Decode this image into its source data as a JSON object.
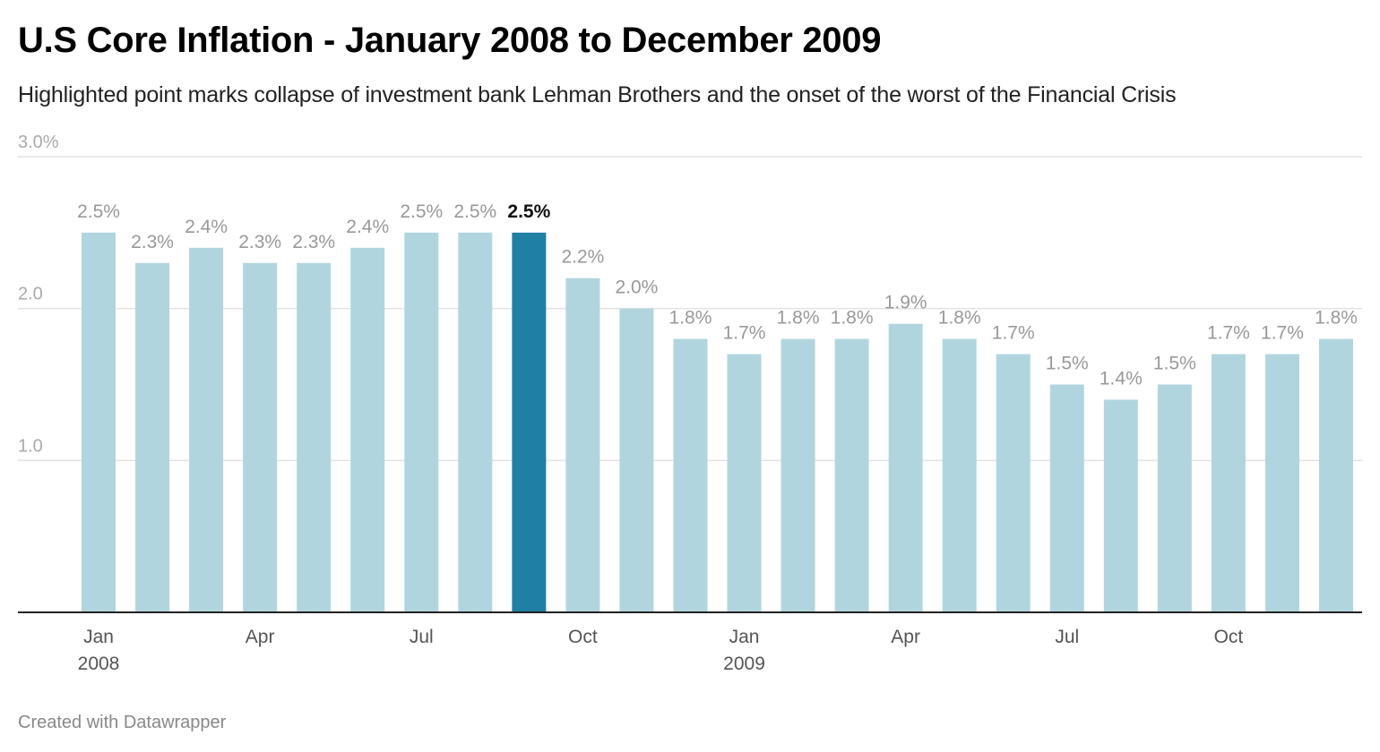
{
  "title": "U.S Core Inflation - January 2008 to December 2009",
  "subtitle": "Highlighted point marks collapse of investment bank Lehman Brothers and the onset of the worst of the Financial Crisis",
  "footer": "Created with Datawrapper",
  "colors": {
    "bar": "#b1d5de",
    "highlight": "#1f80a3",
    "grid": "#e2e2e2",
    "axis": "#222222",
    "label": "#999999",
    "highlight_label": "#111111",
    "tick": "#555555"
  },
  "chart_data": {
    "type": "bar",
    "title": "U.S Core Inflation - January 2008 to December 2009",
    "subtitle": "Highlighted point marks collapse of investment bank Lehman Brothers and the onset of the worst of the Financial Crisis",
    "xlabel": "",
    "ylabel": "",
    "ylim": [
      0,
      3.0
    ],
    "grid": true,
    "y_ticks": [
      {
        "value": 1.0,
        "label": "1.0"
      },
      {
        "value": 2.0,
        "label": "2.0"
      },
      {
        "value": 3.0,
        "label": "3.0%"
      }
    ],
    "categories": [
      "Jan 2008",
      "Feb 2008",
      "Mar 2008",
      "Apr 2008",
      "May 2008",
      "Jun 2008",
      "Jul 2008",
      "Aug 2008",
      "Sep 2008",
      "Oct 2008",
      "Nov 2008",
      "Dec 2008",
      "Jan 2009",
      "Feb 2009",
      "Mar 2009",
      "Apr 2009",
      "May 2009",
      "Jun 2009",
      "Jul 2009",
      "Aug 2009",
      "Sep 2009",
      "Oct 2009",
      "Nov 2009",
      "Dec 2009"
    ],
    "values": [
      2.5,
      2.3,
      2.4,
      2.3,
      2.3,
      2.4,
      2.5,
      2.5,
      2.5,
      2.2,
      2.0,
      1.8,
      1.7,
      1.8,
      1.8,
      1.9,
      1.8,
      1.7,
      1.5,
      1.4,
      1.5,
      1.7,
      1.7,
      1.8
    ],
    "data_labels": [
      "2.5%",
      "2.3%",
      "2.4%",
      "2.3%",
      "2.3%",
      "2.4%",
      "2.5%",
      "2.5%",
      "2.5%",
      "2.2%",
      "2.0%",
      "1.8%",
      "1.7%",
      "1.8%",
      "1.8%",
      "1.9%",
      "1.8%",
      "1.7%",
      "1.5%",
      "1.4%",
      "1.5%",
      "1.7%",
      "1.7%",
      "1.8%"
    ],
    "highlight_index": 8,
    "x_ticks": [
      {
        "index": 0,
        "label": "Jan",
        "year": "2008"
      },
      {
        "index": 3,
        "label": "Apr",
        "year": ""
      },
      {
        "index": 6,
        "label": "Jul",
        "year": ""
      },
      {
        "index": 9,
        "label": "Oct",
        "year": ""
      },
      {
        "index": 12,
        "label": "Jan",
        "year": "2009"
      },
      {
        "index": 15,
        "label": "Apr",
        "year": ""
      },
      {
        "index": 18,
        "label": "Jul",
        "year": ""
      },
      {
        "index": 21,
        "label": "Oct",
        "year": ""
      }
    ]
  }
}
